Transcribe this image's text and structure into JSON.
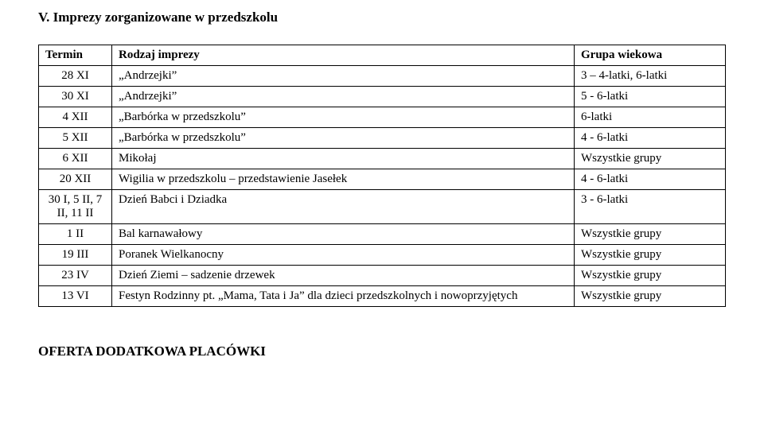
{
  "section_title": "V. Imprezy zorganizowane w przedszkolu",
  "table": {
    "columns": [
      "Termin",
      "Rodzaj imprezy",
      "Grupa wiekowa"
    ],
    "rows": [
      {
        "termin": "28 XI",
        "rodzaj": "„Andrzejki”",
        "grupa": "3 – 4-latki, 6-latki"
      },
      {
        "termin": "30 XI",
        "rodzaj": "„Andrzejki”",
        "grupa": "5 - 6-latki"
      },
      {
        "termin": "4 XII",
        "rodzaj": "„Barbórka w przedszkolu”",
        "grupa": "6-latki"
      },
      {
        "termin": "5 XII",
        "rodzaj": "„Barbórka w przedszkolu”",
        "grupa": "4 - 6-latki"
      },
      {
        "termin": "6 XII",
        "rodzaj": "Mikołaj",
        "grupa": "Wszystkie grupy"
      },
      {
        "termin": "20 XII",
        "rodzaj": "Wigilia w przedszkolu – przedstawienie Jasełek",
        "grupa": "4 - 6-latki"
      },
      {
        "termin": "30 I, 5 II, 7 II, 11 II",
        "rodzaj": "Dzień Babci i Dziadka",
        "grupa": "3 - 6-latki"
      },
      {
        "termin": "1 II",
        "rodzaj": "Bal karnawałowy",
        "grupa": "Wszystkie grupy"
      },
      {
        "termin": "19 III",
        "rodzaj": "Poranek Wielkanocny",
        "grupa": "Wszystkie grupy"
      },
      {
        "termin": "23 IV",
        "rodzaj": "Dzień Ziemi – sadzenie drzewek",
        "grupa": "Wszystkie grupy"
      },
      {
        "termin": "13 VI",
        "rodzaj": "Festyn Rodzinny pt. „Mama, Tata i Ja” dla dzieci przedszkolnych i nowoprzyjętych",
        "grupa": "Wszystkie grupy"
      }
    ]
  },
  "footer_title": "OFERTA DODATKOWA PLACÓWKI"
}
